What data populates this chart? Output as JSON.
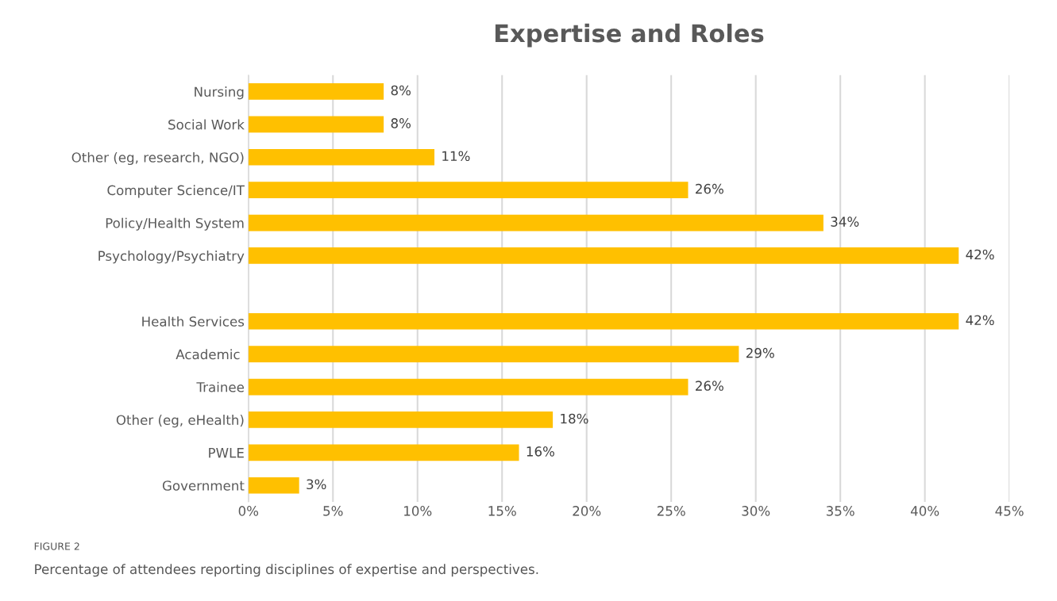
{
  "chart_data": {
    "type": "bar",
    "orientation": "horizontal",
    "title": "Expertise and Roles",
    "categories": [
      "Nursing",
      "Social Work",
      "Other (eg, research, NGO)",
      "Computer Science/IT",
      "Policy/Health System",
      "Psychology/Psychiatry",
      null,
      "Health Services",
      "Academic ",
      "Trainee",
      "Other (eg, eHealth)",
      "PWLE",
      "Government"
    ],
    "values": [
      8,
      8,
      11,
      26,
      34,
      42,
      null,
      42,
      29,
      26,
      18,
      16,
      3
    ],
    "value_labels": [
      "8%",
      "8%",
      "11%",
      "26%",
      "34%",
      "42%",
      null,
      "42%",
      "29%",
      "26%",
      "18%",
      "16%",
      "3%"
    ],
    "color": "#ffc000",
    "xlim": [
      0,
      45
    ],
    "xticks": [
      {
        "value": 0,
        "label": "0%"
      },
      {
        "value": 5,
        "label": "5%"
      },
      {
        "value": 10,
        "label": "10%"
      },
      {
        "value": 15,
        "label": "15%"
      },
      {
        "value": 20,
        "label": "20%"
      },
      {
        "value": 25,
        "label": "25%"
      },
      {
        "value": 30,
        "label": "30%"
      },
      {
        "value": 35,
        "label": "35%"
      },
      {
        "value": 40,
        "label": "40%"
      },
      {
        "value": 45,
        "label": "45%"
      }
    ],
    "grid": "x",
    "annotations": [
      "FIGURE 2",
      "Percentage of attendees reporting disciplines of expertise and perspectives."
    ]
  }
}
